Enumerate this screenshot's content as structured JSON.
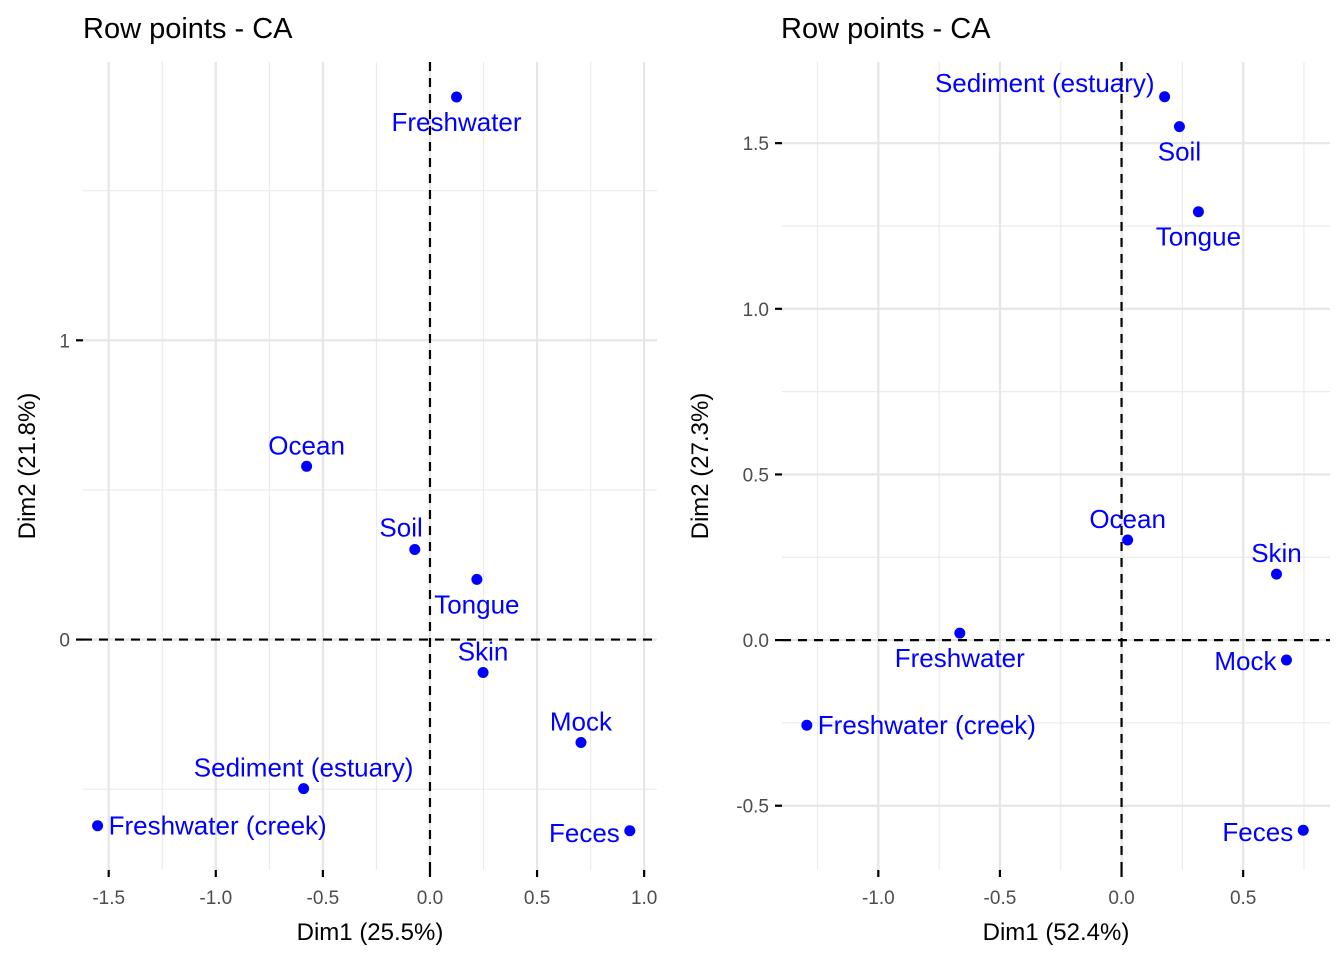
{
  "point_color": "#0000ff",
  "chart_data": [
    {
      "type": "scatter",
      "title": "Row points - CA",
      "xlabel": "Dim1 (25.5%)",
      "ylabel": "Dim2 (21.8%)",
      "xlim": [
        -1.62,
        1.06
      ],
      "ylim": [
        -0.77,
        1.93
      ],
      "xticks": [
        -1.5,
        -1.0,
        -0.5,
        0.0,
        0.5,
        1.0
      ],
      "xtick_labels": [
        "-1.5",
        "-1.0",
        "-0.5",
        "0.0",
        "0.5",
        "1.0"
      ],
      "yticks": [
        0,
        1
      ],
      "ytick_labels": [
        "0",
        "1"
      ],
      "grid": true,
      "reference_lines": {
        "x": 0,
        "y": 0,
        "style": "dashed"
      },
      "points": [
        {
          "label": "Freshwater",
          "x": 0.124,
          "y": 1.813,
          "label_pos": "below"
        },
        {
          "label": "Ocean",
          "x": -0.576,
          "y": 0.579,
          "label_pos": "above"
        },
        {
          "label": "Soil",
          "x": -0.071,
          "y": 0.301,
          "label_pos": "above-left"
        },
        {
          "label": "Tongue",
          "x": 0.219,
          "y": 0.201,
          "label_pos": "below"
        },
        {
          "label": "Skin",
          "x": 0.248,
          "y": -0.11,
          "label_pos": "above"
        },
        {
          "label": "Mock",
          "x": 0.705,
          "y": -0.344,
          "label_pos": "above"
        },
        {
          "label": "Sediment (estuary)",
          "x": -0.59,
          "y": -0.498,
          "label_pos": "above"
        },
        {
          "label": "Freshwater (creek)",
          "x": -1.552,
          "y": -0.622,
          "label_pos": "right"
        },
        {
          "label": "Feces",
          "x": 0.933,
          "y": -0.639,
          "label_pos": "left"
        }
      ]
    },
    {
      "type": "scatter",
      "title": "Row points - CA",
      "xlabel": "Dim1 (52.4%)",
      "ylabel": "Dim2 (27.3%)",
      "xlim": [
        -1.396,
        0.857
      ],
      "ylim": [
        -0.694,
        1.745
      ],
      "xticks": [
        -1.0,
        -0.5,
        0.0,
        0.5
      ],
      "xtick_labels": [
        "-1.0",
        "-0.5",
        "0.0",
        "0.5"
      ],
      "yticks": [
        -0.5,
        0.0,
        0.5,
        1.0,
        1.5
      ],
      "ytick_labels": [
        "-0.5",
        "0.0",
        "0.5",
        "1.0",
        "1.5"
      ],
      "grid": true,
      "reference_lines": {
        "x": 0,
        "y": 0,
        "style": "dashed"
      },
      "points": [
        {
          "label": "Sediment (estuary)",
          "x": 0.177,
          "y": 1.64,
          "label_pos": "left"
        },
        {
          "label": "Soil",
          "x": 0.238,
          "y": 1.55,
          "label_pos": "below"
        },
        {
          "label": "Tongue",
          "x": 0.316,
          "y": 1.293,
          "label_pos": "below"
        },
        {
          "label": "Ocean",
          "x": 0.025,
          "y": 0.302,
          "label_pos": "above"
        },
        {
          "label": "Skin",
          "x": 0.637,
          "y": 0.199,
          "label_pos": "above"
        },
        {
          "label": "Freshwater",
          "x": -0.665,
          "y": 0.021,
          "label_pos": "below"
        },
        {
          "label": "Mock",
          "x": 0.678,
          "y": -0.06,
          "label_pos": "left"
        },
        {
          "label": "Freshwater (creek)",
          "x": -1.294,
          "y": -0.257,
          "label_pos": "right"
        },
        {
          "label": "Feces",
          "x": 0.747,
          "y": -0.574,
          "label_pos": "left"
        }
      ]
    }
  ]
}
